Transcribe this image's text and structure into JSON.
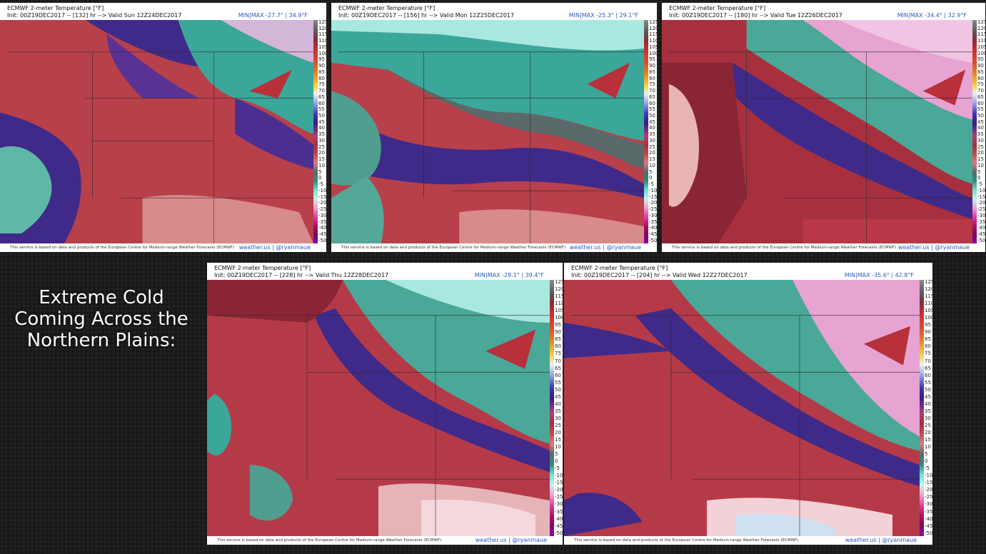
{
  "caption": {
    "line1": "Extreme Cold",
    "line2": "Coming Across the",
    "line3": "Northern Plains:"
  },
  "colorbar_ticks": [
    "125",
    "120",
    "115",
    "110",
    "105",
    "100",
    "95",
    "90",
    "85",
    "80",
    "75",
    "70",
    "65",
    "60",
    "55",
    "50",
    "45",
    "40",
    "35",
    "30",
    "25",
    "20",
    "15",
    "10",
    "5",
    "0",
    "-5",
    "-10",
    "-15",
    "-20",
    "-25",
    "-30",
    "-35",
    "-40",
    "-45",
    "-50"
  ],
  "panels": [
    {
      "title": "ECMWF 2-meter Temperature [°F]",
      "init": "Init: 00Z19DEC2017 -- [132] hr --> Valid Sun 12Z24DEC2017",
      "minmax": "MIN|MAX -27.7° | 34.9°F",
      "disclaimer": "This service is based on data and products of the European Centre for Medium-range Weather Forecasts (ECMWF)",
      "credit": "weather.us | @ryanmaue"
    },
    {
      "title": "ECMWF 2-meter Temperature [°F]",
      "init": "Init: 00Z19DEC2017 -- [156] hr --> Valid Mon 12Z25DEC2017",
      "minmax": "MIN|MAX -25.3° | 29.1°F",
      "disclaimer": "This service is based on data and products of the European Centre for Medium-range Weather Forecasts (ECMWF)",
      "credit": "weather.us | @ryanmaue"
    },
    {
      "title": "ECMWF 2-meter Temperature [°F]",
      "init": "Init: 00Z19DEC2017 -- [180] hr --> Valid Tue 12Z26DEC2017",
      "minmax": "MIN|MAX -34.4° | 32.9°F",
      "disclaimer": "This service is based on data and products of the European Centre for Medium-range Weather Forecasts (ECMWF)",
      "credit": "weather.us | @ryanmaue"
    },
    {
      "title": "ECMWF 2-meter Temperature [°F]",
      "init": "Init: 00Z19DEC2017 -- [228] hr --> Valid Thu 12Z28DEC2017",
      "minmax": "MIN|MAX -28.1° | 39.4°F",
      "disclaimer": "This service is based on data and products of the European Centre for Medium-range Weather Forecasts (ECMWF)",
      "credit": "weather.us | @ryanmaue"
    },
    {
      "title": "ECMWF 2-meter Temperature [°F]",
      "init": "Init: 00Z19DEC2017 -- [204] hr --> Valid Wed 12Z27DEC2017",
      "minmax": "MIN|MAX -35.6° | 42.8°F",
      "disclaimer": "This service is based on data and products of the European Centre for Medium-range Weather Forecasts (ECMWF)",
      "credit": "weather.us | @ryanmaue"
    }
  ]
}
